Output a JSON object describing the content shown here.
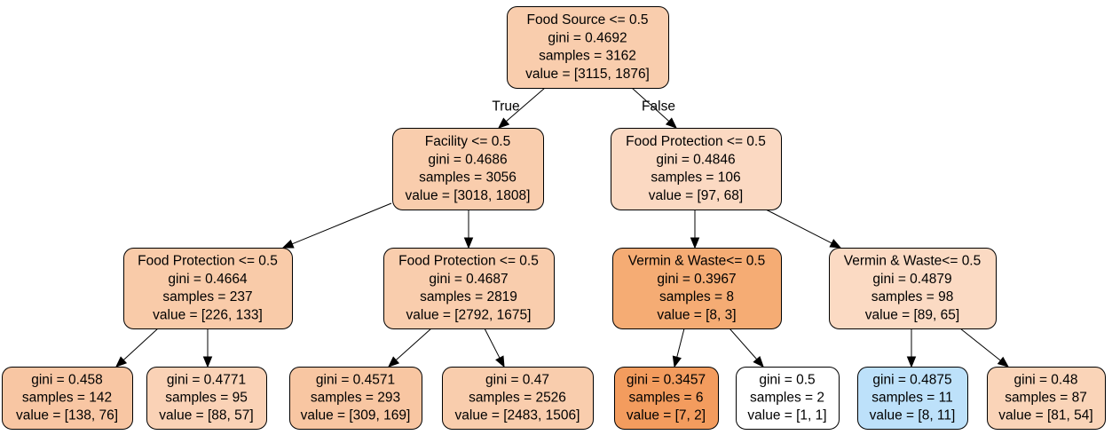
{
  "tree": {
    "nodes": [
      {
        "id": "n0",
        "lines": [
          "Food Source <= 0.5",
          "gini = 0.4692",
          "samples = 3162",
          "value = [3115, 1876]"
        ],
        "fill": "#f9cdad"
      },
      {
        "id": "n1",
        "lines": [
          "Facility <= 0.5",
          "gini = 0.4686",
          "samples = 3056",
          "value = [3018, 1808]"
        ],
        "fill": "#f9cdad"
      },
      {
        "id": "n2",
        "lines": [
          "Food Protection <= 0.5",
          "gini = 0.4846",
          "samples = 106",
          "value = [97, 68]"
        ],
        "fill": "#fbd9c2"
      },
      {
        "id": "n3",
        "lines": [
          "Food Protection <= 0.5",
          "gini = 0.4664",
          "samples = 237",
          "value = [226, 133]"
        ],
        "fill": "#f9cba9"
      },
      {
        "id": "n4",
        "lines": [
          "Food Protection <= 0.5",
          "gini = 0.4687",
          "samples = 2819",
          "value = [2792, 1675]"
        ],
        "fill": "#f9cdad"
      },
      {
        "id": "n5",
        "lines": [
          "Vermin & Waste<= 0.5",
          "gini = 0.3967",
          "samples = 8",
          "value = [8, 3]"
        ],
        "fill": "#f5ac74"
      },
      {
        "id": "n6",
        "lines": [
          "Vermin & Waste<= 0.5",
          "gini = 0.4879",
          "samples = 98",
          "value = [89, 65]"
        ],
        "fill": "#fbdac3"
      },
      {
        "id": "n7",
        "lines": [
          "gini = 0.458",
          "samples = 142",
          "value = [138, 76]"
        ],
        "fill": "#f8c6a3"
      },
      {
        "id": "n8",
        "lines": [
          "gini = 0.4771",
          "samples = 95",
          "value = [88, 57]"
        ],
        "fill": "#fad2b6"
      },
      {
        "id": "n9",
        "lines": [
          "gini = 0.4571",
          "samples = 293",
          "value = [309, 169]"
        ],
        "fill": "#f8c6a2"
      },
      {
        "id": "n10",
        "lines": [
          "gini = 0.47",
          "samples = 2526",
          "value = [2483, 1506]"
        ],
        "fill": "#f9cdad"
      },
      {
        "id": "n11",
        "lines": [
          "gini = 0.3457",
          "samples = 6",
          "value = [7, 2]"
        ],
        "fill": "#f39c5e"
      },
      {
        "id": "n12",
        "lines": [
          "gini = 0.5",
          "samples = 2",
          "value = [1, 1]"
        ],
        "fill": "#ffffff"
      },
      {
        "id": "n13",
        "lines": [
          "gini = 0.4875",
          "samples = 11",
          "value = [8, 11]"
        ],
        "fill": "#bde1fa"
      },
      {
        "id": "n14",
        "lines": [
          "gini = 0.48",
          "samples = 87",
          "value = [81, 54]"
        ],
        "fill": "#fad4b8"
      }
    ],
    "edges": [
      {
        "from": "n0",
        "to": "n1",
        "label": "True"
      },
      {
        "from": "n0",
        "to": "n2",
        "label": "False"
      },
      {
        "from": "n1",
        "to": "n3",
        "label": ""
      },
      {
        "from": "n1",
        "to": "n4",
        "label": ""
      },
      {
        "from": "n2",
        "to": "n5",
        "label": ""
      },
      {
        "from": "n2",
        "to": "n6",
        "label": ""
      },
      {
        "from": "n3",
        "to": "n7",
        "label": ""
      },
      {
        "from": "n3",
        "to": "n8",
        "label": ""
      },
      {
        "from": "n4",
        "to": "n9",
        "label": ""
      },
      {
        "from": "n4",
        "to": "n10",
        "label": ""
      },
      {
        "from": "n5",
        "to": "n11",
        "label": ""
      },
      {
        "from": "n5",
        "to": "n12",
        "label": ""
      },
      {
        "from": "n6",
        "to": "n13",
        "label": ""
      },
      {
        "from": "n6",
        "to": "n14",
        "label": ""
      }
    ]
  }
}
